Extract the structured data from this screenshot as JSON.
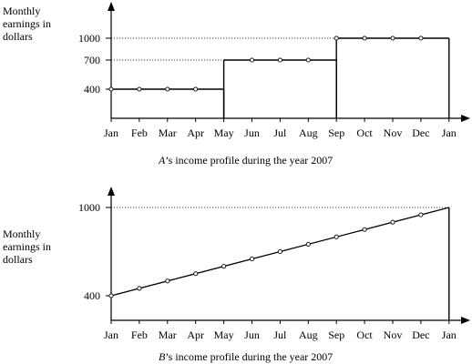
{
  "chart_data": [
    {
      "type": "step",
      "ylabel": [
        "Monthly",
        "earnings in",
        "dollars"
      ],
      "caption": {
        "var": "A",
        "text": "’s income profile during the year 2007"
      },
      "categories": [
        "Jan",
        "Feb",
        "Mar",
        "Apr",
        "May",
        "Jun",
        "Jul",
        "Aug",
        "Sep",
        "Oct",
        "Nov",
        "Dec",
        "Jan"
      ],
      "y_ticks": [
        400,
        700,
        1000
      ],
      "ylim": [
        0,
        1200
      ],
      "steps": [
        {
          "from": 0,
          "to": 4,
          "value": 400
        },
        {
          "from": 4,
          "to": 8,
          "value": 700
        },
        {
          "from": 8,
          "to": 12,
          "value": 1000
        }
      ],
      "points": [
        {
          "x": 0,
          "y": 400
        },
        {
          "x": 1,
          "y": 400
        },
        {
          "x": 2,
          "y": 400
        },
        {
          "x": 3,
          "y": 400
        },
        {
          "x": 5,
          "y": 700
        },
        {
          "x": 6,
          "y": 700
        },
        {
          "x": 7,
          "y": 700
        },
        {
          "x": 8,
          "y": 1000
        },
        {
          "x": 9,
          "y": 1000
        },
        {
          "x": 10,
          "y": 1000
        },
        {
          "x": 11,
          "y": 1000
        }
      ],
      "dotted_refs": [
        700,
        1000
      ]
    },
    {
      "type": "line",
      "ylabel": [
        "Monthly",
        "earnings in",
        "dollars"
      ],
      "caption": {
        "var": "B",
        "text": "’s income profile during the year 2007"
      },
      "categories": [
        "Jan",
        "Feb",
        "Mar",
        "Apr",
        "May",
        "Jun",
        "Jul",
        "Aug",
        "Sep",
        "Oct",
        "Nov",
        "Dec",
        "Jan"
      ],
      "y_ticks": [
        400,
        1000
      ],
      "ylim": [
        0,
        1200
      ],
      "line": {
        "x0": 0,
        "y0": 400,
        "x1": 12,
        "y1": 1000
      },
      "points": [
        {
          "x": 0,
          "y": 400
        },
        {
          "x": 1,
          "y": 450
        },
        {
          "x": 2,
          "y": 500
        },
        {
          "x": 3,
          "y": 550
        },
        {
          "x": 4,
          "y": 600
        },
        {
          "x": 5,
          "y": 650
        },
        {
          "x": 6,
          "y": 700
        },
        {
          "x": 7,
          "y": 750
        },
        {
          "x": 8,
          "y": 800
        },
        {
          "x": 9,
          "y": 850
        },
        {
          "x": 10,
          "y": 900
        },
        {
          "x": 11,
          "y": 950
        }
      ],
      "dotted_refs": [
        1000
      ]
    }
  ]
}
